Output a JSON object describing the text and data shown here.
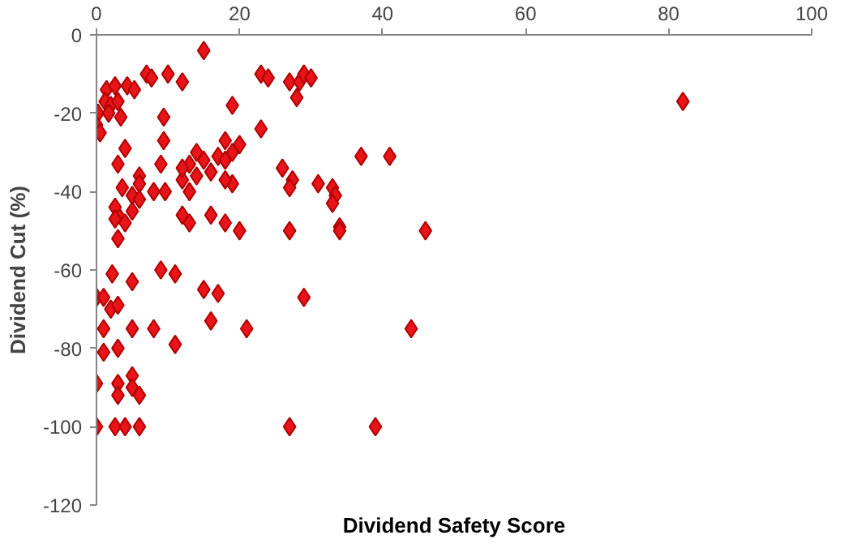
{
  "chart_data": {
    "type": "scatter",
    "xlabel": "Dividend Safety Score",
    "ylabel": "Dividend Cut (%)",
    "xlim": [
      0,
      100
    ],
    "ylim": [
      -120,
      0
    ],
    "xticks": [
      0,
      20,
      40,
      60,
      80,
      100
    ],
    "yticks": [
      -120,
      -100,
      -80,
      -60,
      -40,
      -20,
      0
    ],
    "marker": "diamond",
    "series": [
      {
        "color": "#e8141a",
        "x": [
          15,
          7,
          7.7,
          10,
          12,
          23,
          24,
          27,
          28.4,
          29,
          30,
          28,
          1.4,
          2.6,
          4.3,
          5.3,
          1.2,
          2,
          3,
          0.2,
          1.7,
          3.4,
          0,
          0.5,
          19,
          9.4,
          9.4,
          4,
          23,
          18,
          20,
          19,
          14,
          15,
          17,
          3,
          6,
          3.6,
          6,
          8,
          5,
          9.6,
          13,
          12,
          14,
          16,
          18,
          19,
          26,
          27.4,
          27,
          31,
          33,
          33.4,
          33,
          34,
          37,
          41,
          46,
          44,
          39,
          82,
          3,
          5,
          9,
          12,
          18,
          6,
          13,
          2.6,
          4,
          3,
          12,
          13,
          16,
          18,
          20,
          27,
          34,
          2.6,
          2.2,
          5,
          9,
          11,
          15,
          17,
          29,
          0,
          1,
          2,
          3,
          1,
          5,
          8,
          16,
          21,
          11,
          1,
          3,
          0,
          3,
          5,
          3,
          6,
          5,
          0,
          2.6,
          4,
          6,
          27
        ],
        "values": [
          -4,
          -10,
          -11,
          -10,
          -12,
          -10,
          -11,
          -12,
          -12,
          -10,
          -11,
          -16,
          -14,
          -13,
          -13,
          -14,
          -17,
          -18,
          -17,
          -20,
          -20,
          -21,
          -23,
          -25,
          -18,
          -21,
          -27,
          -29,
          -24,
          -27,
          -28,
          -30,
          -30,
          -32,
          -31,
          -33,
          -36,
          -39,
          -38,
          -40,
          -41,
          -40,
          -33,
          -37,
          -36,
          -35,
          -32,
          -38,
          -34,
          -37,
          -39,
          -38,
          -39,
          -41,
          -43,
          -49,
          -31,
          -31,
          -50,
          -75,
          -100,
          -17,
          -46,
          -45,
          -33,
          -34,
          -37,
          -42,
          -40,
          -44,
          -48,
          -52,
          -46,
          -48,
          -46,
          -48,
          -50,
          -50,
          -50,
          -47,
          -61,
          -63,
          -60,
          -61,
          -65,
          -66,
          -67,
          -67,
          -67,
          -70,
          -69,
          -75,
          -75,
          -75,
          -73,
          -75,
          -79,
          -81,
          -80,
          -89,
          -89,
          -87,
          -92,
          -92,
          -90,
          -100,
          -100,
          -100,
          -100,
          -100
        ]
      }
    ]
  }
}
